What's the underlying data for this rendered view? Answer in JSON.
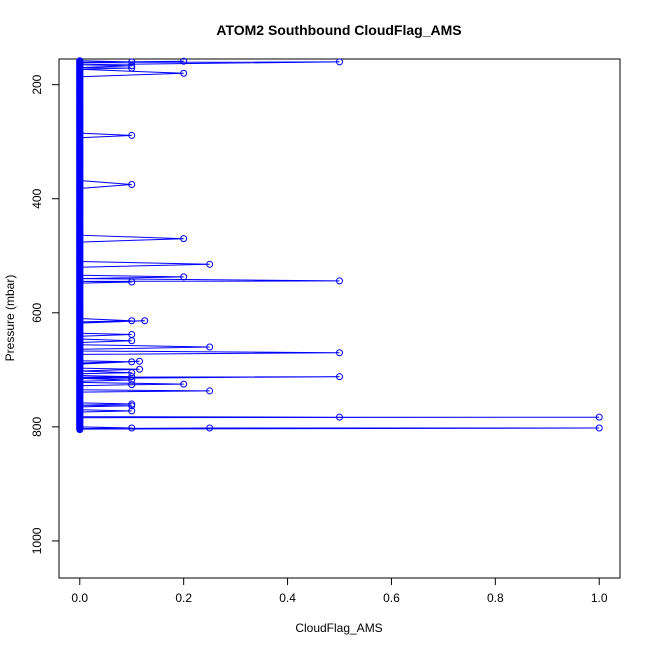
{
  "chart_data": {
    "type": "line",
    "title": "ATOM2 Southbound CloudFlag_AMS",
    "xlabel": "CloudFlag_AMS",
    "ylabel": "Pressure (mbar)",
    "xlim": [
      -0.04,
      1.04
    ],
    "ylim": [
      1065,
      155
    ],
    "y_inverted": true,
    "x_ticks": [
      0.0,
      0.2,
      0.4,
      0.6,
      0.8,
      1.0
    ],
    "x_tick_labels": [
      "0.0",
      "0.2",
      "0.4",
      "0.6",
      "0.8",
      "1.0"
    ],
    "y_ticks": [
      200,
      400,
      600,
      800,
      1000
    ],
    "y_tick_labels": [
      "200",
      "400",
      "600",
      "800",
      "1000"
    ],
    "grid": false,
    "color": "#0000ff",
    "series": [
      {
        "marker": "open-circle",
        "points": [
          {
            "x": 0,
            "y": 158
          },
          {
            "x": 0.1,
            "y": 160
          },
          {
            "x": 0,
            "y": 162
          },
          {
            "x": 0.2,
            "y": 159
          },
          {
            "x": 0,
            "y": 161
          },
          {
            "x": 0.5,
            "y": 160
          },
          {
            "x": 0,
            "y": 165
          },
          {
            "x": 0.1,
            "y": 167
          },
          {
            "x": 0,
            "y": 170
          },
          {
            "x": 0.1,
            "y": 171
          },
          {
            "x": 0,
            "y": 173
          },
          {
            "x": 0.2,
            "y": 180
          },
          {
            "x": 0,
            "y": 186
          },
          {
            "x": 0,
            "y": 285
          },
          {
            "x": 0.1,
            "y": 289
          },
          {
            "x": 0,
            "y": 293
          },
          {
            "x": 0,
            "y": 368
          },
          {
            "x": 0.1,
            "y": 375
          },
          {
            "x": 0,
            "y": 382
          },
          {
            "x": 0,
            "y": 464
          },
          {
            "x": 0.2,
            "y": 470
          },
          {
            "x": 0,
            "y": 476
          },
          {
            "x": 0,
            "y": 510
          },
          {
            "x": 0.25,
            "y": 515
          },
          {
            "x": 0,
            "y": 520
          },
          {
            "x": 0,
            "y": 534
          },
          {
            "x": 0.2,
            "y": 537
          },
          {
            "x": 0,
            "y": 540
          },
          {
            "x": 0.5,
            "y": 544
          },
          {
            "x": 0,
            "y": 545
          },
          {
            "x": 0.1,
            "y": 546
          },
          {
            "x": 0,
            "y": 548
          },
          {
            "x": 0,
            "y": 610
          },
          {
            "x": 0.1,
            "y": 614
          },
          {
            "x": 0,
            "y": 616
          },
          {
            "x": 0.125,
            "y": 614
          },
          {
            "x": 0,
            "y": 618
          },
          {
            "x": 0,
            "y": 636
          },
          {
            "x": 0.1,
            "y": 638
          },
          {
            "x": 0,
            "y": 641
          },
          {
            "x": 0,
            "y": 646
          },
          {
            "x": 0.1,
            "y": 649
          },
          {
            "x": 0,
            "y": 652
          },
          {
            "x": 0,
            "y": 656
          },
          {
            "x": 0.25,
            "y": 660
          },
          {
            "x": 0,
            "y": 664
          },
          {
            "x": 0,
            "y": 667
          },
          {
            "x": 0.5,
            "y": 670
          },
          {
            "x": 0,
            "y": 673
          },
          {
            "x": 0,
            "y": 684
          },
          {
            "x": 0.1,
            "y": 686
          },
          {
            "x": 0,
            "y": 688
          },
          {
            "x": 0.115,
            "y": 685
          },
          {
            "x": 0,
            "y": 690
          },
          {
            "x": 0,
            "y": 697
          },
          {
            "x": 0.115,
            "y": 699
          },
          {
            "x": 0,
            "y": 702
          },
          {
            "x": 0.1,
            "y": 705
          },
          {
            "x": 0,
            "y": 707
          },
          {
            "x": 0,
            "y": 710
          },
          {
            "x": 0.1,
            "y": 712
          },
          {
            "x": 0,
            "y": 713
          },
          {
            "x": 0.5,
            "y": 712
          },
          {
            "x": 0,
            "y": 715
          },
          {
            "x": 0.1,
            "y": 718
          },
          {
            "x": 0,
            "y": 720
          },
          {
            "x": 0,
            "y": 722
          },
          {
            "x": 0.2,
            "y": 725
          },
          {
            "x": 0.1,
            "y": 726
          },
          {
            "x": 0,
            "y": 728
          },
          {
            "x": 0,
            "y": 735
          },
          {
            "x": 0.25,
            "y": 737
          },
          {
            "x": 0,
            "y": 739
          },
          {
            "x": 0,
            "y": 758
          },
          {
            "x": 0.1,
            "y": 760
          },
          {
            "x": 0,
            "y": 762
          },
          {
            "x": 0.1,
            "y": 763
          },
          {
            "x": 0,
            "y": 765
          },
          {
            "x": 0,
            "y": 770
          },
          {
            "x": 0.1,
            "y": 772
          },
          {
            "x": 0,
            "y": 774
          },
          {
            "x": 0,
            "y": 782
          },
          {
            "x": 0.5,
            "y": 783
          },
          {
            "x": 1.0,
            "y": 783
          },
          {
            "x": 0,
            "y": 784
          },
          {
            "x": 0,
            "y": 800
          },
          {
            "x": 0.1,
            "y": 802
          },
          {
            "x": 0,
            "y": 803
          },
          {
            "x": 0.25,
            "y": 802
          },
          {
            "x": 1.0,
            "y": 802
          },
          {
            "x": 0,
            "y": 804
          }
        ]
      }
    ],
    "zero_markers_range": [
      158,
      805
    ],
    "zero_marker_step": 1.2
  }
}
